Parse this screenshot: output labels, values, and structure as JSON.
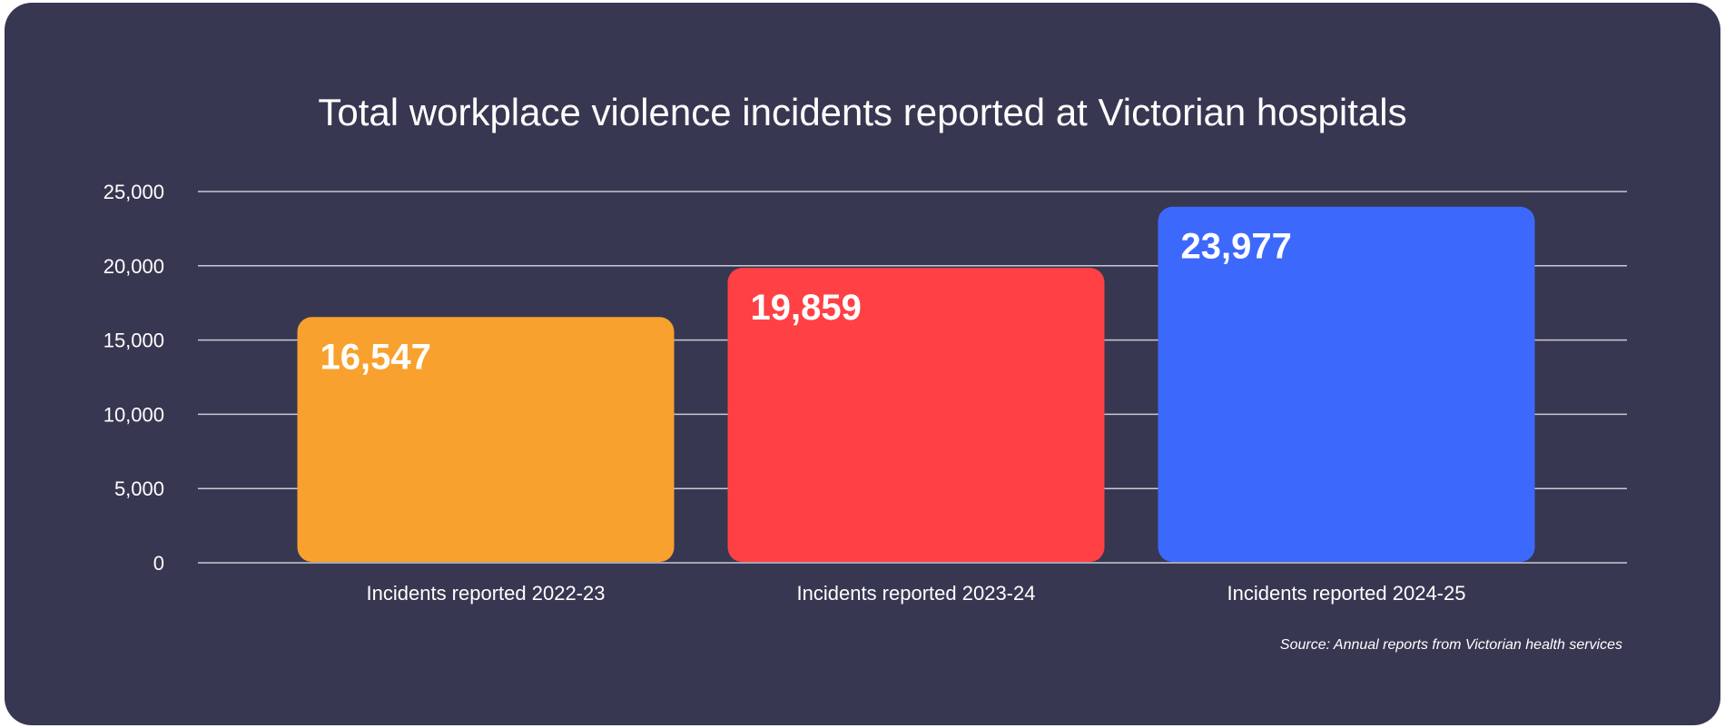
{
  "chart_data": {
    "type": "bar",
    "title": "Total workplace violence incidents reported at Victorian hospitals",
    "categories": [
      "Incidents reported 2022-23",
      "Incidents reported 2023-24",
      "Incidents reported 2024-25"
    ],
    "values": [
      16547,
      19859,
      23977
    ],
    "value_labels": [
      "16,547",
      "19,859",
      "23,977"
    ],
    "colors": [
      "#F9A12E",
      "#FF4145",
      "#3D68FC"
    ],
    "ylim": [
      0,
      25000
    ],
    "yticks": [
      0,
      5000,
      10000,
      15000,
      20000,
      25000
    ],
    "ytick_labels": [
      "0",
      "5,000",
      "10,000",
      "15,000",
      "20,000",
      "25,000"
    ],
    "grid": true,
    "xlabel": "",
    "ylabel": ""
  },
  "source": "Source: Annual reports from Victorian health services",
  "colors": {
    "background": "#373751",
    "text": "#FFFFFF",
    "grid": "#C9C9D4"
  }
}
